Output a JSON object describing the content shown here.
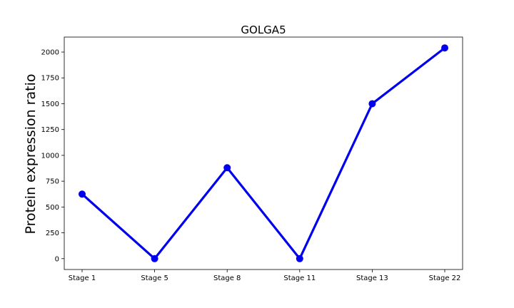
{
  "chart_data": {
    "type": "line",
    "title": "GOLGA5",
    "xlabel": "",
    "ylabel": "Protein expression ratio",
    "categories": [
      "Stage 1",
      "Stage 5",
      "Stage 8",
      "Stage 11",
      "Stage 13",
      "Stage 22"
    ],
    "series": [
      {
        "values": [
          625,
          0,
          880,
          0,
          1500,
          2040
        ],
        "color": "#0000ee"
      }
    ],
    "yticks": [
      0,
      250,
      500,
      750,
      1000,
      1250,
      1500,
      1750,
      2000
    ],
    "ylim": [
      -105,
      2145
    ],
    "grid": false,
    "legend": "none"
  }
}
